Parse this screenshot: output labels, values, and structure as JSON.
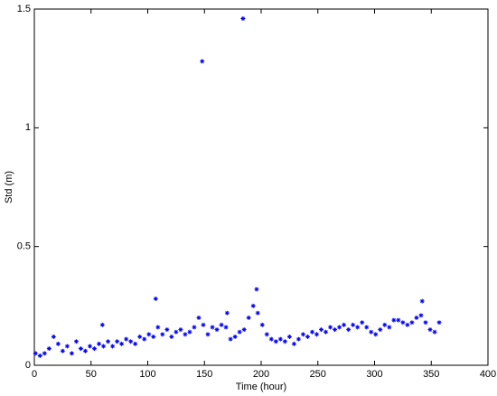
{
  "chart_data": {
    "type": "scatter",
    "xlabel": "Time (hour)",
    "ylabel": "Std  (m)",
    "xlim": [
      0,
      400
    ],
    "ylim": [
      0,
      1.5
    ],
    "xticks": [
      0,
      50,
      100,
      150,
      200,
      250,
      300,
      350,
      400
    ],
    "yticks": [
      0,
      0.5,
      1,
      1.5
    ],
    "color": "#0000ff",
    "x": [
      1,
      5,
      9,
      13,
      17,
      21,
      25,
      29,
      33,
      37,
      41,
      45,
      49,
      53,
      57,
      61,
      65,
      69,
      73,
      77,
      81,
      85,
      89,
      93,
      97,
      101,
      105,
      109,
      113,
      117,
      121,
      125,
      129,
      133,
      137,
      141,
      145,
      149,
      153,
      157,
      161,
      165,
      169,
      173,
      177,
      181,
      185,
      189,
      193,
      197,
      201,
      205,
      209,
      213,
      217,
      221,
      225,
      229,
      233,
      237,
      241,
      245,
      249,
      253,
      257,
      261,
      265,
      269,
      273,
      277,
      281,
      285,
      289,
      293,
      297,
      301,
      305,
      309,
      313,
      317,
      321,
      325,
      329,
      333,
      337,
      341,
      345,
      349,
      353,
      357,
      148,
      184,
      107,
      196,
      342,
      60,
      170
    ],
    "values": [
      0.05,
      0.04,
      0.05,
      0.07,
      0.12,
      0.09,
      0.06,
      0.08,
      0.05,
      0.1,
      0.07,
      0.06,
      0.08,
      0.07,
      0.09,
      0.08,
      0.1,
      0.08,
      0.1,
      0.09,
      0.11,
      0.1,
      0.09,
      0.12,
      0.11,
      0.13,
      0.12,
      0.16,
      0.13,
      0.15,
      0.12,
      0.14,
      0.15,
      0.13,
      0.14,
      0.16,
      0.2,
      0.17,
      0.13,
      0.16,
      0.15,
      0.17,
      0.16,
      0.11,
      0.12,
      0.14,
      0.15,
      0.2,
      0.25,
      0.22,
      0.17,
      0.13,
      0.11,
      0.1,
      0.11,
      0.1,
      0.12,
      0.09,
      0.11,
      0.13,
      0.12,
      0.14,
      0.13,
      0.15,
      0.14,
      0.16,
      0.15,
      0.16,
      0.17,
      0.15,
      0.17,
      0.16,
      0.18,
      0.16,
      0.14,
      0.13,
      0.15,
      0.17,
      0.16,
      0.19,
      0.19,
      0.18,
      0.17,
      0.18,
      0.2,
      0.21,
      0.18,
      0.15,
      0.14,
      0.18,
      1.28,
      1.46,
      0.28,
      0.32,
      0.27,
      0.17,
      0.22
    ]
  }
}
